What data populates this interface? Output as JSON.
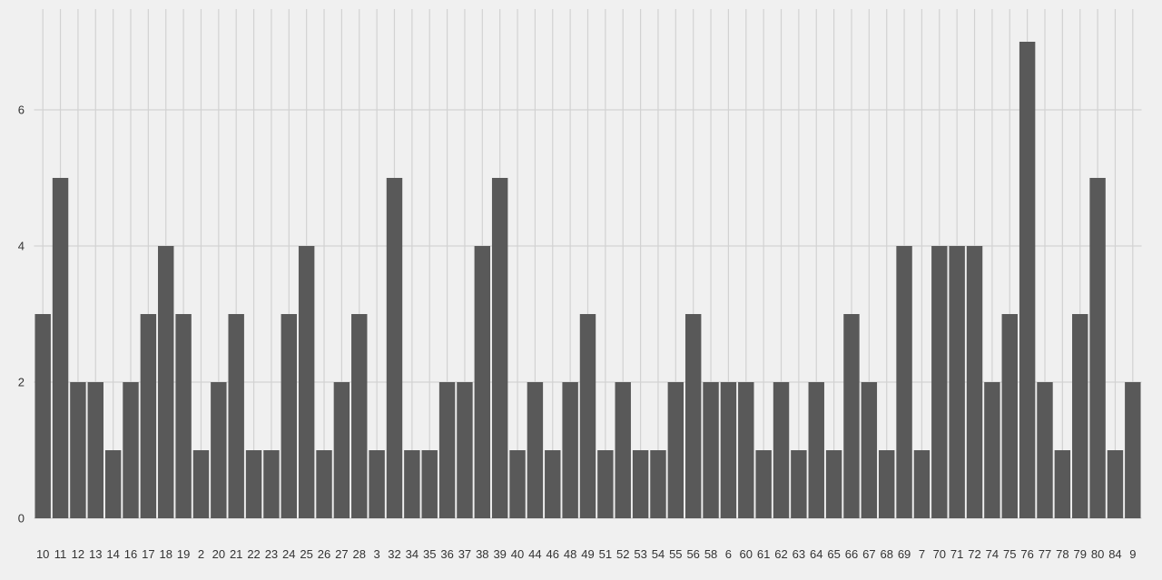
{
  "chart_data": {
    "type": "bar",
    "categories": [
      "10",
      "11",
      "12",
      "13",
      "14",
      "16",
      "17",
      "18",
      "19",
      "2",
      "20",
      "21",
      "22",
      "23",
      "24",
      "25",
      "26",
      "27",
      "28",
      "3",
      "32",
      "34",
      "35",
      "36",
      "37",
      "38",
      "39",
      "40",
      "44",
      "46",
      "48",
      "49",
      "51",
      "52",
      "53",
      "54",
      "55",
      "56",
      "58",
      "6",
      "60",
      "61",
      "62",
      "63",
      "64",
      "65",
      "66",
      "67",
      "68",
      "69",
      "7",
      "70",
      "71",
      "72",
      "74",
      "75",
      "76",
      "77",
      "78",
      "79",
      "80",
      "84",
      "9"
    ],
    "values": [
      3,
      5,
      2,
      2,
      1,
      2,
      3,
      4,
      3,
      1,
      2,
      3,
      1,
      1,
      3,
      4,
      1,
      2,
      3,
      1,
      5,
      1,
      1,
      2,
      2,
      4,
      5,
      1,
      2,
      1,
      2,
      3,
      1,
      2,
      1,
      1,
      2,
      3,
      2,
      2,
      2,
      1,
      2,
      1,
      2,
      1,
      3,
      2,
      1,
      4,
      1,
      4,
      4,
      4,
      2,
      3,
      7,
      2,
      1,
      3,
      5,
      1,
      2
    ],
    "yticks": [
      "0",
      "2",
      "4",
      "6"
    ],
    "ylim": [
      0,
      7
    ],
    "bar_color": "#595959",
    "grid_color": "#d2d2d2",
    "background": "#f0f0f0",
    "grid": true,
    "title": "",
    "xlabel": "",
    "ylabel": ""
  }
}
